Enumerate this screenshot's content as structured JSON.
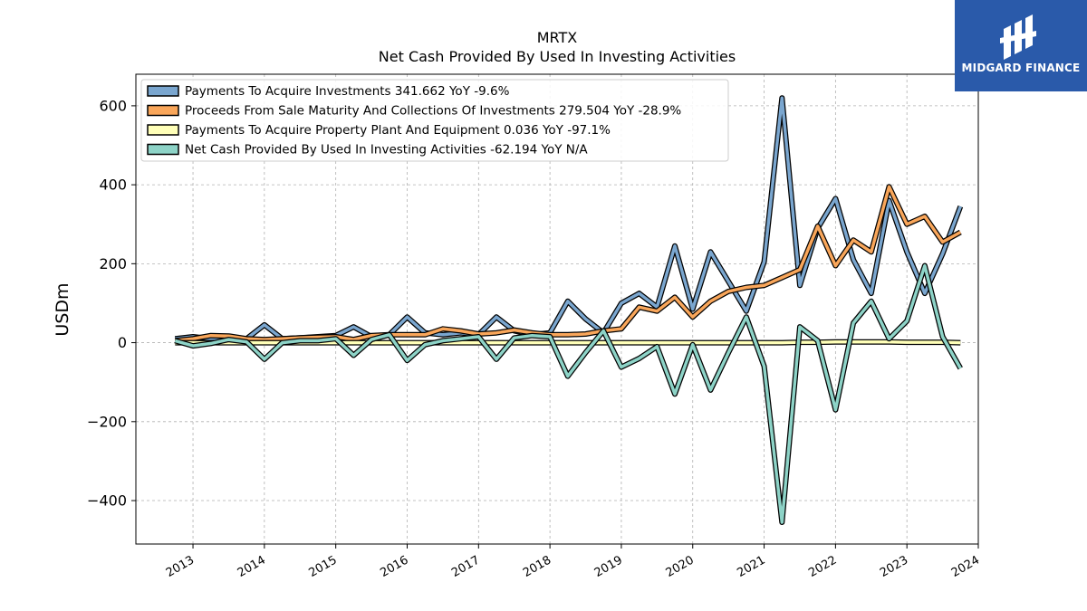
{
  "logo": {
    "text": "MIDGARD FINANCE",
    "color": "#2a5aaa"
  },
  "chart_data": {
    "type": "line",
    "title": "MRTX",
    "subtitle": "Net Cash Provided By Used In Investing Activities",
    "ylabel": "USDm",
    "ylim": [
      -510,
      680
    ],
    "xlim": [
      2012.2,
      2024.0
    ],
    "yticks": [
      -400,
      -200,
      0,
      200,
      400,
      600
    ],
    "yticklabels": [
      "−400",
      "−200",
      "0",
      "200",
      "400",
      "600"
    ],
    "xticks": [
      2013,
      2014,
      2015,
      2016,
      2017,
      2018,
      2019,
      2020,
      2021,
      2022,
      2023,
      2024
    ],
    "grid": true,
    "legend_position": "top-left",
    "series": [
      {
        "name": "Payments To Acquire Investments",
        "legend": "Payments To Acquire Investments  341.662 YoY -9.6%",
        "color": "#7aa6cf",
        "x": [
          2012.75,
          2013.0,
          2013.25,
          2013.5,
          2013.75,
          2014.0,
          2014.25,
          2014.5,
          2014.75,
          2015.0,
          2015.25,
          2015.5,
          2015.75,
          2016.0,
          2016.25,
          2016.5,
          2016.75,
          2017.0,
          2017.25,
          2017.5,
          2017.75,
          2018.0,
          2018.25,
          2018.5,
          2018.75,
          2019.0,
          2019.25,
          2019.5,
          2019.75,
          2020.0,
          2020.25,
          2020.5,
          2020.75,
          2021.0,
          2021.25,
          2021.5,
          2021.75,
          2022.0,
          2022.25,
          2022.5,
          2022.75,
          2023.0,
          2023.25,
          2023.5,
          2023.75
        ],
        "values": [
          10,
          15,
          10,
          12,
          10,
          45,
          10,
          12,
          15,
          18,
          40,
          15,
          20,
          65,
          25,
          20,
          25,
          20,
          65,
          30,
          20,
          25,
          105,
          60,
          25,
          100,
          125,
          90,
          245,
          85,
          230,
          155,
          80,
          205,
          620,
          145,
          290,
          365,
          210,
          125,
          360,
          230,
          125,
          225,
          345
        ]
      },
      {
        "name": "Proceeds From Sale Maturity And Collections Of Investments",
        "legend": "Proceeds From Sale Maturity And Collections Of Investments  279.504 YoY -28.9%",
        "color": "#f9a65a",
        "x": [
          2012.75,
          2013.0,
          2013.25,
          2013.5,
          2013.75,
          2014.0,
          2014.25,
          2014.5,
          2014.75,
          2015.0,
          2015.25,
          2015.5,
          2015.75,
          2016.0,
          2016.25,
          2016.5,
          2016.75,
          2017.0,
          2017.25,
          2017.5,
          2017.75,
          2018.0,
          2018.25,
          2018.5,
          2018.75,
          2019.0,
          2019.25,
          2019.5,
          2019.75,
          2020.0,
          2020.25,
          2020.5,
          2020.75,
          2021.0,
          2021.25,
          2021.5,
          2021.75,
          2022.0,
          2022.25,
          2022.5,
          2022.75,
          2023.0,
          2023.25,
          2023.5,
          2023.75
        ],
        "values": [
          5,
          10,
          18,
          17,
          10,
          8,
          10,
          12,
          14,
          15,
          8,
          18,
          20,
          20,
          20,
          35,
          30,
          22,
          25,
          32,
          25,
          20,
          20,
          22,
          30,
          35,
          90,
          80,
          115,
          65,
          105,
          130,
          140,
          145,
          165,
          185,
          295,
          195,
          260,
          230,
          395,
          300,
          320,
          255,
          280
        ]
      },
      {
        "name": "Payments To Acquire Property Plant And Equipment",
        "legend": "Payments To Acquire Property Plant And Equipment  0.036 YoY -97.1%",
        "color": "#ffffb8",
        "x": [
          2012.75,
          2013.0,
          2013.25,
          2013.5,
          2013.75,
          2014.0,
          2014.25,
          2014.5,
          2014.75,
          2015.0,
          2015.25,
          2015.5,
          2015.75,
          2016.0,
          2016.25,
          2016.5,
          2016.75,
          2017.0,
          2017.25,
          2017.5,
          2017.75,
          2018.0,
          2018.25,
          2018.5,
          2018.75,
          2019.0,
          2019.25,
          2019.5,
          2019.75,
          2020.0,
          2020.25,
          2020.5,
          2020.75,
          2021.0,
          2021.25,
          2021.5,
          2021.75,
          2022.0,
          2022.25,
          2022.5,
          2022.75,
          2023.0,
          2023.25,
          2023.5,
          2023.75
        ],
        "values": [
          0,
          0,
          0,
          0,
          0,
          0,
          0,
          0,
          0,
          0,
          0,
          0,
          0,
          0,
          0,
          0,
          0,
          0,
          0,
          0,
          0,
          0,
          0,
          0,
          0,
          0,
          0,
          0,
          0,
          0,
          0,
          0,
          0,
          0,
          0,
          1,
          1,
          2,
          2,
          2,
          2,
          1,
          1,
          1,
          0.036
        ]
      },
      {
        "name": "Net Cash Provided By Used In Investing Activities",
        "legend": "Net Cash Provided By Used In Investing Activities  -62.194 YoY N/A",
        "color": "#8dd3c7",
        "x": [
          2012.75,
          2013.0,
          2013.25,
          2013.5,
          2013.75,
          2014.0,
          2014.25,
          2014.5,
          2014.75,
          2015.0,
          2015.25,
          2015.5,
          2015.75,
          2016.0,
          2016.25,
          2016.5,
          2016.75,
          2017.0,
          2017.25,
          2017.5,
          2017.75,
          2018.0,
          2018.25,
          2018.5,
          2018.75,
          2019.0,
          2019.25,
          2019.5,
          2019.75,
          2020.0,
          2020.25,
          2020.5,
          2020.75,
          2021.0,
          2021.25,
          2021.5,
          2021.75,
          2022.0,
          2022.25,
          2022.5,
          2022.75,
          2023.0,
          2023.25,
          2023.5,
          2023.75
        ],
        "values": [
          5,
          -8,
          -2,
          8,
          2,
          -42,
          0,
          5,
          5,
          10,
          -32,
          8,
          20,
          -45,
          -5,
          5,
          10,
          15,
          -42,
          12,
          18,
          15,
          -85,
          -25,
          30,
          -62,
          -40,
          -10,
          -130,
          -5,
          -120,
          -25,
          65,
          -60,
          -455,
          40,
          5,
          -170,
          50,
          105,
          10,
          55,
          195,
          15,
          -65
        ]
      }
    ]
  }
}
